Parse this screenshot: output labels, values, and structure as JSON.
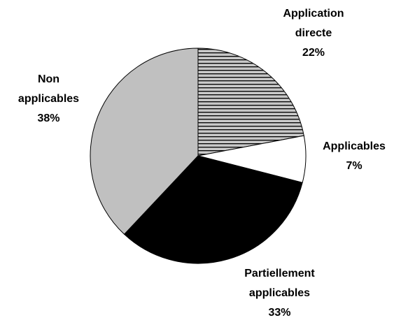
{
  "chart_data": {
    "type": "pie",
    "categories": [
      "Application directe",
      "Applicables",
      "Partiellement applicables",
      "Non applicables"
    ],
    "values": [
      22,
      7,
      33,
      38
    ],
    "value_labels": [
      "22%",
      "7%",
      "33%",
      "38%"
    ],
    "colors": [
      "#a8a8a8",
      "#ffffff",
      "#000000",
      "#c0c0c0"
    ],
    "hatch": [
      true,
      false,
      false,
      false
    ]
  }
}
